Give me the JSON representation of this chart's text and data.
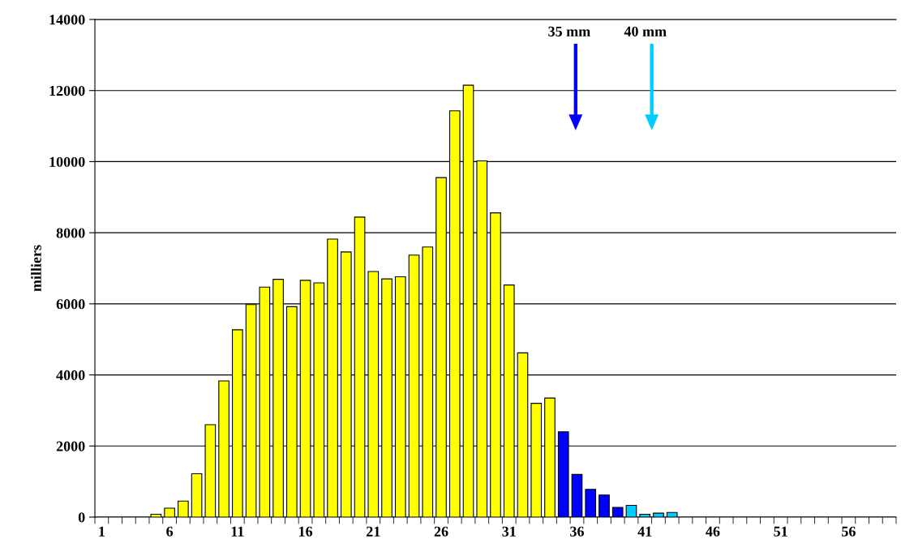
{
  "chart_data": {
    "type": "bar",
    "categories": [
      "1",
      null,
      null,
      null,
      null,
      "6",
      null,
      null,
      null,
      null,
      "11",
      null,
      null,
      null,
      null,
      "16",
      null,
      null,
      null,
      null,
      "21",
      null,
      null,
      null,
      null,
      "26",
      null,
      null,
      null,
      null,
      "31",
      null,
      null,
      null,
      null,
      "36",
      null,
      null,
      null,
      null,
      "41",
      null,
      null,
      null,
      null,
      "46",
      null,
      null,
      null,
      null,
      "51",
      null,
      null,
      null,
      null,
      "56",
      null,
      null,
      null
    ],
    "values": [
      null,
      null,
      null,
      null,
      80,
      250,
      450,
      1220,
      2600,
      3830,
      5270,
      5980,
      6470,
      6690,
      5920,
      6660,
      6590,
      7820,
      7460,
      8440,
      6910,
      6700,
      6760,
      7370,
      7600,
      9550,
      11430,
      12150,
      10020,
      8560,
      6530,
      4620,
      3200,
      3350,
      2400,
      1200,
      780,
      620,
      270,
      330,
      80,
      110,
      130,
      null,
      null,
      null,
      null,
      null,
      null,
      null,
      null,
      null,
      null,
      null,
      null,
      null,
      null,
      null,
      null
    ],
    "colors": [
      null,
      null,
      null,
      null,
      "#ffff00",
      "#ffff00",
      "#ffff00",
      "#ffff00",
      "#ffff00",
      "#ffff00",
      "#ffff00",
      "#ffff00",
      "#ffff00",
      "#ffff00",
      "#ffff00",
      "#ffff00",
      "#ffff00",
      "#ffff00",
      "#ffff00",
      "#ffff00",
      "#ffff00",
      "#ffff00",
      "#ffff00",
      "#ffff00",
      "#ffff00",
      "#ffff00",
      "#ffff00",
      "#ffff00",
      "#ffff00",
      "#ffff00",
      "#ffff00",
      "#ffff00",
      "#ffff00",
      "#ffff00",
      "#0000ff",
      "#0000ff",
      "#0000ff",
      "#0000ff",
      "#0000ff",
      "#00ccff",
      "#00ccff",
      "#00ccff",
      "#00ccff",
      null,
      null,
      null,
      null,
      null,
      null,
      null,
      null,
      null,
      null,
      null,
      null,
      null,
      null,
      null,
      null
    ],
    "ylabel": "milliers",
    "ylim": [
      0,
      14000
    ],
    "yticks": [
      0,
      2000,
      4000,
      6000,
      8000,
      10000,
      12000,
      14000
    ],
    "grid": "y",
    "annotations": [
      "35 mm",
      "40 mm"
    ]
  }
}
